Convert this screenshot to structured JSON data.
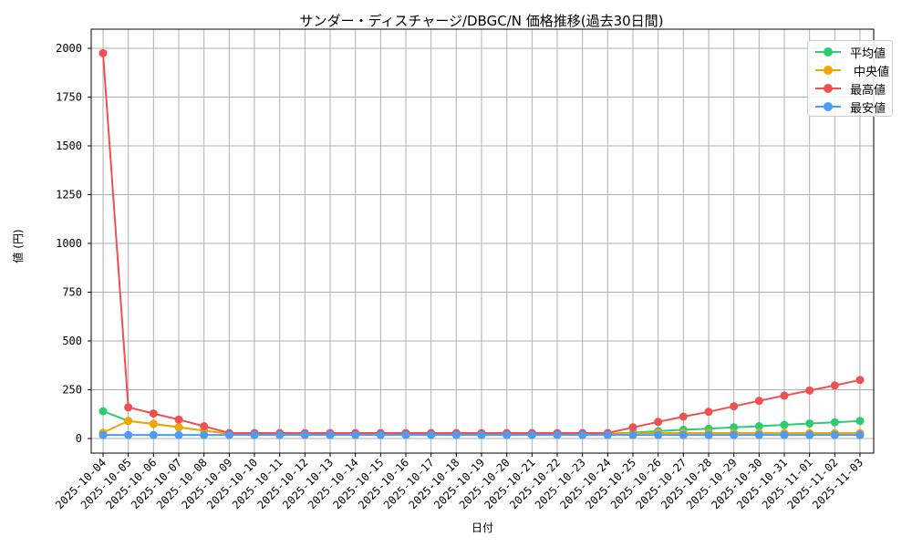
{
  "chart_data": {
    "type": "line",
    "title": "サンダー・ディスチャージ/DBGC/N 価格推移(過去30日間)",
    "xlabel": "日付",
    "ylabel": "値 (円)",
    "ylim": [
      -70,
      2070
    ],
    "yticks": [
      0,
      250,
      500,
      750,
      1000,
      1250,
      1500,
      1750,
      2000
    ],
    "grid": true,
    "legend_position": "upper right",
    "x": [
      "2025-10-04",
      "2025-10-05",
      "2025-10-06",
      "2025-10-07",
      "2025-10-08",
      "2025-10-09",
      "2025-10-10",
      "2025-10-11",
      "2025-10-12",
      "2025-10-13",
      "2025-10-14",
      "2025-10-15",
      "2025-10-16",
      "2025-10-17",
      "2025-10-18",
      "2025-10-19",
      "2025-10-20",
      "2025-10-21",
      "2025-10-22",
      "2025-10-23",
      "2025-10-24",
      "2025-10-25",
      "2025-10-26",
      "2025-10-27",
      "2025-10-28",
      "2025-10-29",
      "2025-10-30",
      "2025-10-31",
      "2025-11-01",
      "2025-11-02",
      "2025-11-03"
    ],
    "series": [
      {
        "name": "平均値",
        "color": "#2ecc71",
        "values": [
          140,
          90,
          75,
          58,
          40,
          25,
          25,
          25,
          25,
          25,
          25,
          25,
          25,
          25,
          25,
          25,
          25,
          25,
          25,
          25,
          25,
          30,
          38,
          45,
          50,
          57,
          63,
          70,
          77,
          83,
          90
        ]
      },
      {
        "name": "中央値",
        "color": "#f5a500",
        "values": [
          30,
          90,
          75,
          58,
          40,
          25,
          25,
          25,
          25,
          25,
          25,
          25,
          25,
          25,
          25,
          25,
          25,
          25,
          25,
          25,
          25,
          27,
          28,
          28,
          28,
          28,
          28,
          28,
          28,
          28,
          28
        ]
      },
      {
        "name": "最高値",
        "color": "#f05050",
        "values": [
          1975,
          160,
          128,
          97,
          63,
          28,
          28,
          28,
          28,
          28,
          28,
          28,
          28,
          28,
          28,
          28,
          28,
          28,
          28,
          28,
          28,
          57,
          85,
          112,
          137,
          165,
          193,
          220,
          246,
          272,
          300
        ]
      },
      {
        "name": "最安値",
        "color": "#4a9cf5",
        "values": [
          18,
          18,
          18,
          18,
          18,
          18,
          18,
          18,
          18,
          18,
          18,
          18,
          18,
          18,
          18,
          18,
          18,
          18,
          18,
          18,
          18,
          18,
          18,
          18,
          18,
          18,
          18,
          18,
          18,
          18,
          18
        ]
      }
    ]
  },
  "legend": {
    "items": [
      {
        "label": "平均値",
        "color": "#2ecc71"
      },
      {
        "label": "中央値",
        "color": "#f5a500"
      },
      {
        "label": "最高値",
        "color": "#f05050"
      },
      {
        "label": "最安値",
        "color": "#4a9cf5"
      }
    ]
  }
}
